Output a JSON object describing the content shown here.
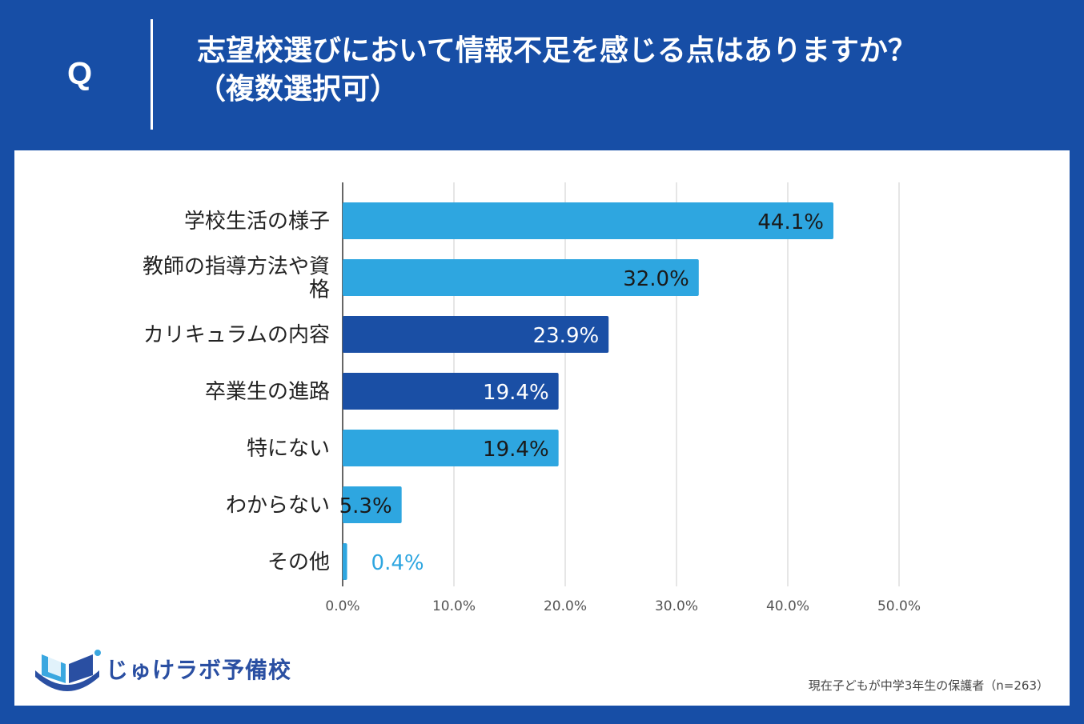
{
  "header": {
    "q_label": "Q",
    "title_line1": "志望校選びにおいて情報不足を感じる点はありますか？",
    "title_line2": "（複数選択可）"
  },
  "colors": {
    "background": "#174ea6",
    "bar_light": "#2ea6e0",
    "bar_dark": "#1a4fa5",
    "label_outside": "#2ea6e0"
  },
  "chart_data": {
    "type": "bar",
    "orientation": "horizontal",
    "categories": [
      [
        "学校生活の様子"
      ],
      [
        "教師の指導方法や資",
        "格"
      ],
      [
        "カリキュラムの内容"
      ],
      [
        "卒業生の進路"
      ],
      [
        "特にない"
      ],
      [
        "わからない"
      ],
      [
        "その他"
      ]
    ],
    "values": [
      44.1,
      32.0,
      23.9,
      19.4,
      19.4,
      5.3,
      0.4
    ],
    "value_labels": [
      "44.1%",
      "32.0%",
      "23.9%",
      "19.4%",
      "19.4%",
      "5.3%",
      "0.4%"
    ],
    "bar_colors": [
      "#2ea6e0",
      "#2ea6e0",
      "#1a4fa5",
      "#1a4fa5",
      "#2ea6e0",
      "#2ea6e0",
      "#2ea6e0"
    ],
    "label_colors": [
      "#1a1a1a",
      "#1a1a1a",
      "#ffffff",
      "#ffffff",
      "#1a1a1a",
      "#1a1a1a",
      "#2ea6e0"
    ],
    "xlim": [
      0,
      50
    ],
    "xticks": [
      0,
      10,
      20,
      30,
      40,
      50
    ],
    "xtick_labels": [
      "0.0%",
      "10.0%",
      "20.0%",
      "30.0%",
      "40.0%",
      "50.0%"
    ],
    "grid": true
  },
  "logo": {
    "text": "じゅけラボ予備校",
    "icon": "open-book-icon"
  },
  "note": "現在子どもが中学3年生の保護者（n=263）"
}
